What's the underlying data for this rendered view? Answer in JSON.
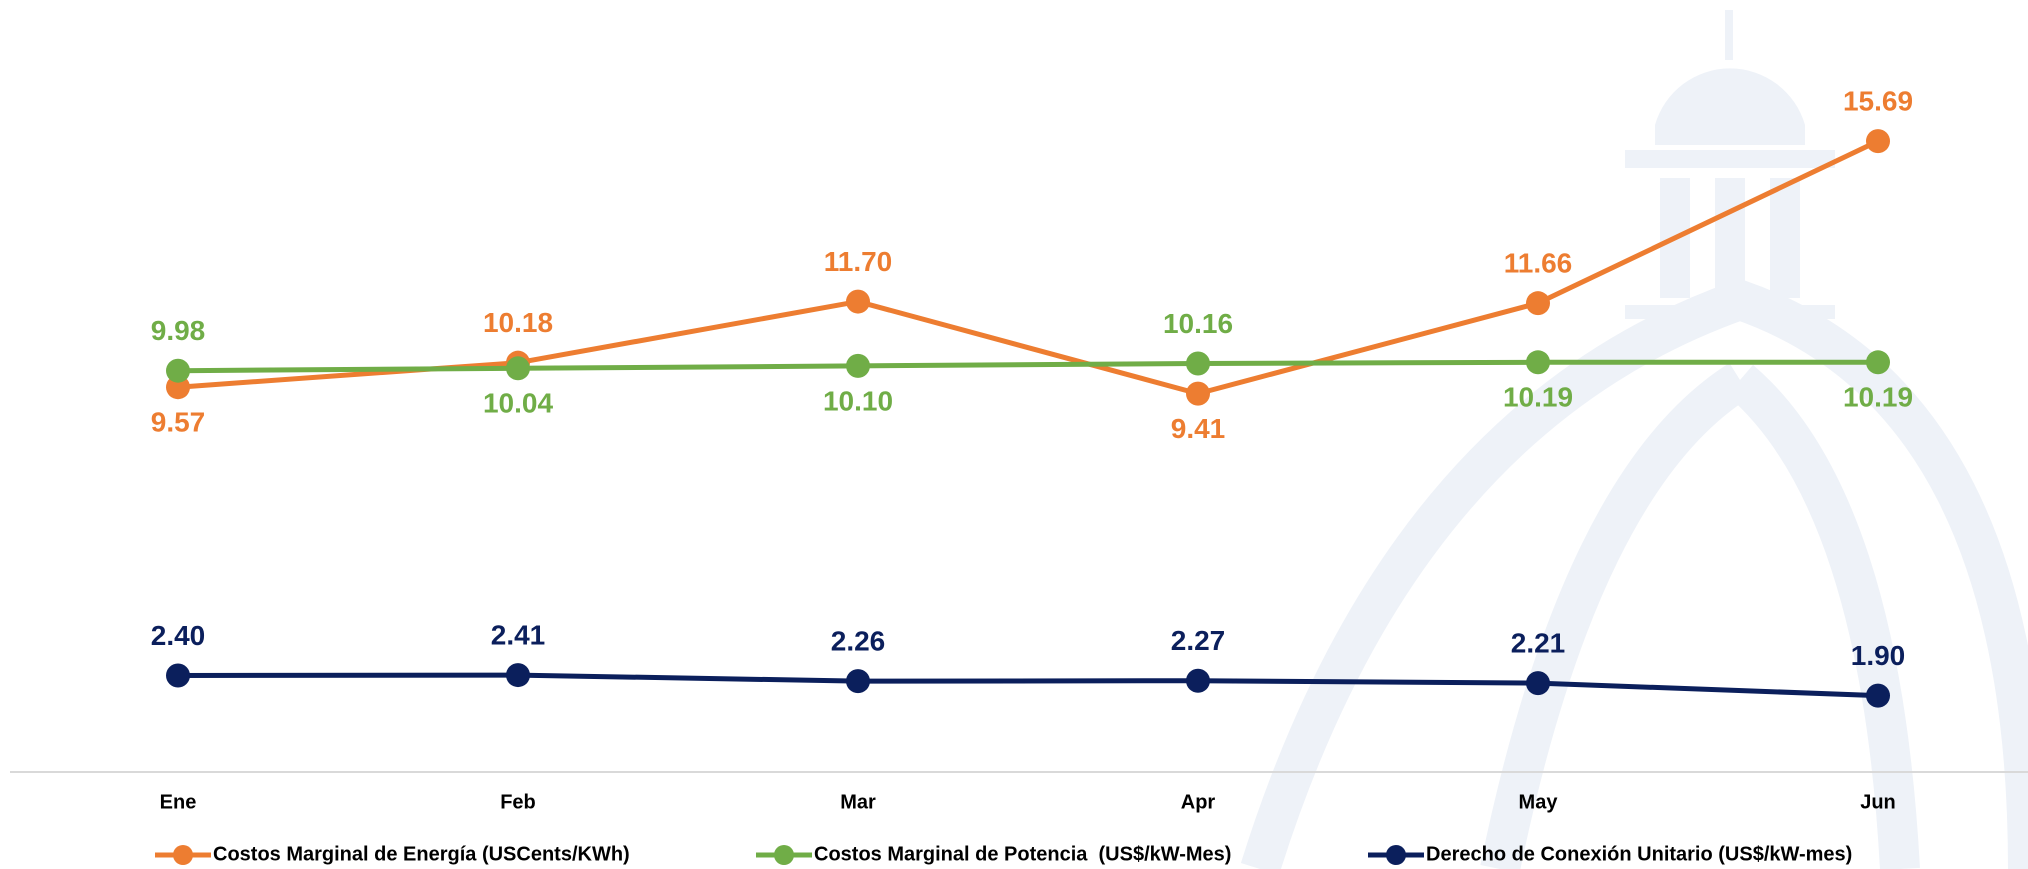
{
  "chart_data": {
    "type": "line",
    "categories": [
      "Ene",
      "Feb",
      "Mar",
      "Apr",
      "May",
      "Jun"
    ],
    "series": [
      {
        "name": "Costos Marginal de Energía (USCents/KWh)",
        "color": "#ed7d31",
        "values": [
          9.57,
          10.18,
          11.7,
          9.41,
          11.66,
          15.69
        ],
        "value_labels": [
          "9.57",
          "10.18",
          "11.70",
          "9.41",
          "11.66",
          "15.69"
        ]
      },
      {
        "name": "Costos Marginal de Potencia  (US$/kW-Mes)",
        "color": "#70ad47",
        "values": [
          9.98,
          10.04,
          10.1,
          10.16,
          10.19,
          10.19
        ],
        "value_labels": [
          "9.98",
          "10.04",
          "10.10",
          "10.16",
          "10.19",
          "10.19"
        ]
      },
      {
        "name": "Derecho de Conexión Unitario (US$/kW-mes)",
        "color": "#0b1f5c",
        "values": [
          2.4,
          2.41,
          2.26,
          2.27,
          2.21,
          1.9
        ],
        "value_labels": [
          "2.40",
          "2.41",
          "2.26",
          "2.27",
          "2.21",
          "1.90"
        ]
      }
    ],
    "ylim": [
      0,
      19.2
    ]
  }
}
